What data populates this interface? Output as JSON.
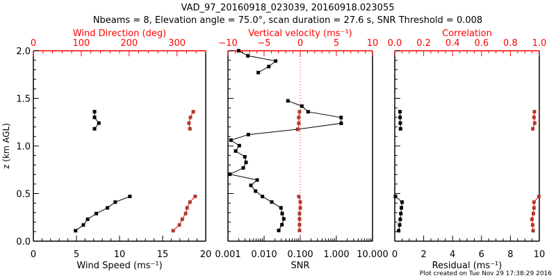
{
  "title": "VAD_97_20160918_023039, 20160918.023055",
  "subtitle": "Nbeams = 8, Elevation angle = 75.0°, scan duration = 27.6 s, SNR Threshold = 0.008",
  "footer": "Plot created on Tue Nov 29 17:38:29 2016",
  "colors": {
    "primary": "#000000",
    "secondary": "#ff0000",
    "secondary_marker": "#b03a2e"
  },
  "chart_data": [
    {
      "type": "line",
      "ylabel": "z (km AGL)",
      "ylim": [
        0,
        2.0
      ],
      "yticks": [
        "0.0",
        "0.5",
        "1.0",
        "1.5",
        "2.0"
      ],
      "xlabel": "Wind Speed (ms⁻¹)",
      "xlim": [
        0,
        20
      ],
      "xticks": [
        "0",
        "5",
        "10",
        "15",
        "20"
      ],
      "top_xlabel": "Wind Direction (deg)",
      "top_xlim": [
        0,
        360
      ],
      "top_xticks": [
        "0",
        "100",
        "200",
        "300"
      ],
      "series": [
        {
          "name": "Wind Speed",
          "axis": "bottom",
          "color": "#000000",
          "segments": [
            {
              "z": [
                1.36,
                1.3,
                1.24,
                1.18
              ],
              "x": [
                7.1,
                7.1,
                7.6,
                7.1
              ]
            },
            {
              "z": [
                0.47,
                0.41,
                0.35,
                0.29,
                0.23,
                0.17,
                0.11
              ],
              "x": [
                11.2,
                9.5,
                8.6,
                7.3,
                6.3,
                5.8,
                4.9
              ]
            }
          ]
        },
        {
          "name": "Wind Direction",
          "axis": "top",
          "color": "#ff0000",
          "segments": [
            {
              "z": [
                1.36,
                1.3,
                1.24,
                1.18
              ],
              "x": [
                334,
                328,
                325,
                327
              ]
            },
            {
              "z": [
                0.47,
                0.41,
                0.35,
                0.29,
                0.23,
                0.17,
                0.11
              ],
              "x": [
                338,
                327,
                321,
                318,
                311,
                305,
                292
              ]
            }
          ]
        }
      ]
    },
    {
      "type": "line",
      "ylim": [
        0,
        2.0
      ],
      "xlabel": "SNR",
      "xscale": "log",
      "xlim": [
        0.001,
        10
      ],
      "xticks": [
        "0.001",
        "0.010",
        "0.100",
        "1.000",
        "10.000"
      ],
      "top_xlabel": "Vertical velocity (ms⁻¹)",
      "top_xlim": [
        -10,
        10
      ],
      "top_xticks": [
        "−10",
        "−5",
        "0",
        "5",
        "10"
      ],
      "series": [
        {
          "name": "SNR",
          "axis": "bottom",
          "color": "#000000",
          "segments": [
            {
              "z": [
                2.0,
                1.947,
                1.892,
                1.834,
                1.771
              ],
              "x": [
                0.00197,
                0.00356,
                0.0209,
                0.0135,
                0.0069
              ]
            },
            {
              "z": [
                1.474,
                1.418,
                1.359,
                1.299,
                1.238,
                1.175,
                1.119,
                1.061,
                1.003,
                0.947,
                0.886,
                0.827,
                0.769,
                0.703,
                0.642,
                0.586,
                0.526,
                0.469,
                0.411,
                0.35,
                0.29,
                0.234,
                0.173,
                0.112
              ],
              "x": [
                0.0457,
                0.111,
                0.165,
                1.35,
                1.36,
                0.085,
                0.00366,
                0.00121,
                0.00206,
                0.00163,
                0.00293,
                0.00316,
                0.00265,
                0.00113,
                0.00643,
                0.00432,
                0.0058,
                0.009,
                0.0163,
                0.0293,
                0.0316,
                0.035,
                0.0312,
                0.0254
              ]
            }
          ]
        },
        {
          "name": "Vertical velocity",
          "axis": "top",
          "color": "#ff0000",
          "segments": [
            {
              "z": [
                1.359,
                1.299,
                1.238,
                1.175
              ],
              "x": [
                -0.1,
                -0.2,
                -0.2,
                -0.3
              ]
            },
            {
              "z": [
                0.469,
                0.411,
                0.35,
                0.29,
                0.234,
                0.173,
                0.112
              ],
              "x": [
                -0.2,
                0.0,
                0.0,
                -0.1,
                -0.1,
                -0.1,
                -0.1
              ]
            }
          ]
        }
      ],
      "reference_line": {
        "axis": "top",
        "x": 0,
        "style": "dotted",
        "color": "#ff0000"
      }
    },
    {
      "type": "line",
      "ylim": [
        0,
        2.0
      ],
      "xlabel": "Residual (ms⁻¹)",
      "xlim": [
        0,
        10
      ],
      "xticks": [
        "0",
        "2",
        "4",
        "6",
        "8",
        "10"
      ],
      "top_xlabel": "Correlation",
      "top_xlim": [
        0,
        1.0
      ],
      "top_xticks": [
        "0.0",
        "0.2",
        "0.4",
        "0.6",
        "0.8",
        "1.0"
      ],
      "series": [
        {
          "name": "Residual",
          "axis": "bottom",
          "color": "#000000",
          "segments": [
            {
              "z": [
                1.36,
                1.3,
                1.24,
                1.18
              ],
              "x": [
                0.36,
                0.37,
                0.38,
                0.4
              ]
            },
            {
              "z": [
                0.47,
                0.41,
                0.35,
                0.29,
                0.23,
                0.17,
                0.11
              ],
              "x": [
                0.05,
                0.51,
                0.46,
                0.42,
                0.38,
                0.34,
                0.27
              ]
            }
          ]
        },
        {
          "name": "Correlation",
          "axis": "top",
          "color": "#ff0000",
          "segments": [
            {
              "z": [
                1.36,
                1.3,
                1.24,
                1.18
              ],
              "x": [
                0.966,
                0.963,
                0.968,
                0.955
              ]
            },
            {
              "z": [
                0.47,
                0.41,
                0.35,
                0.29,
                0.23,
                0.17,
                0.11
              ],
              "x": [
                0.997,
                0.963,
                0.963,
                0.959,
                0.949,
                0.954,
                0.957
              ]
            }
          ]
        }
      ]
    }
  ]
}
